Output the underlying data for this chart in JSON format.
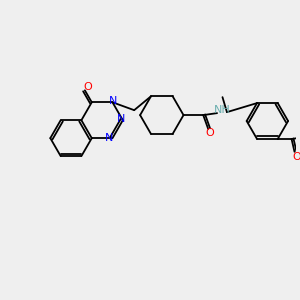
{
  "background_color": "#efefef",
  "title": "",
  "molecule": {
    "atoms": {
      "colors": {
        "C": "#000000",
        "N": "#0000ff",
        "O": "#ff0000",
        "H": "#6aafaf"
      }
    }
  }
}
